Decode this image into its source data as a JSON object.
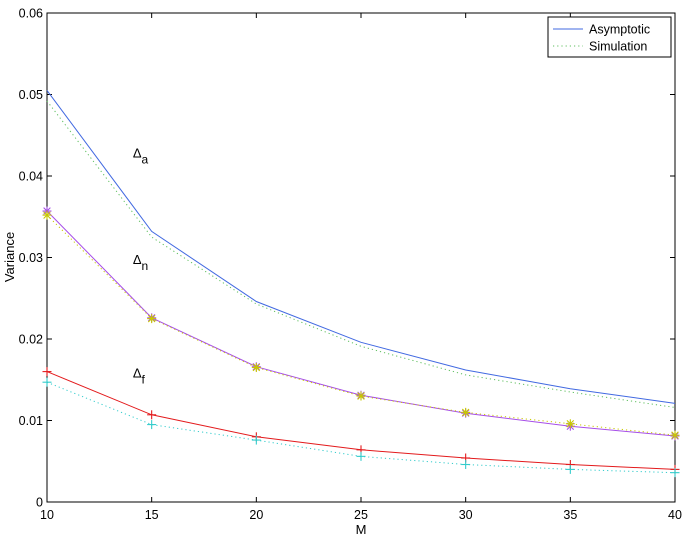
{
  "chart_data": {
    "type": "line",
    "xlabel": "M",
    "ylabel": "Variance",
    "xlim": [
      10,
      40
    ],
    "ylim": [
      0,
      0.06
    ],
    "x_ticks": [
      "10",
      "15",
      "20",
      "25",
      "30",
      "35",
      "40"
    ],
    "y_ticks": [
      "0",
      "0.01",
      "0.02",
      "0.03",
      "0.04",
      "0.05",
      "0.06"
    ],
    "grid": false,
    "legend_position": "top-right",
    "legend": [
      {
        "label": "Asymptotic",
        "style": "solid",
        "color": "#4169e1"
      },
      {
        "label": "Simulation",
        "style": "dotted",
        "color": "#5fbf5f"
      }
    ],
    "x": [
      10,
      15,
      20,
      25,
      30,
      35,
      40
    ],
    "series": [
      {
        "group": "a",
        "kind": "asymptotic",
        "color": "#4169e1",
        "marker": "none",
        "values": [
          0.0505,
          0.0332,
          0.0246,
          0.0196,
          0.0162,
          0.0139,
          0.0121
        ]
      },
      {
        "group": "a",
        "kind": "simulation",
        "color": "#5fbf5f",
        "marker": "none",
        "values": [
          0.0492,
          0.0325,
          0.0243,
          0.0191,
          0.0156,
          0.0135,
          0.0116
        ]
      },
      {
        "group": "n",
        "kind": "asymptotic",
        "color": "#a64ee8",
        "marker": "asterisk",
        "values": [
          0.0357,
          0.0226,
          0.0166,
          0.0131,
          0.0109,
          0.0093,
          0.0081
        ]
      },
      {
        "group": "n",
        "kind": "simulation",
        "color": "#c8c800",
        "marker": "asterisk",
        "values": [
          0.0352,
          0.0225,
          0.0165,
          0.013,
          0.011,
          0.0096,
          0.0082
        ]
      },
      {
        "group": "f",
        "kind": "asymptotic",
        "color": "#e31a1c",
        "marker": "plus",
        "values": [
          0.016,
          0.0107,
          0.008,
          0.0064,
          0.0054,
          0.0046,
          0.004
        ]
      },
      {
        "group": "f",
        "kind": "simulation",
        "color": "#33cccc",
        "marker": "plus",
        "values": [
          0.0147,
          0.0095,
          0.0076,
          0.0056,
          0.0046,
          0.004,
          0.0036
        ]
      }
    ],
    "annotations": [
      {
        "base": "Δ",
        "sub": "a",
        "x": 14.1,
        "y": 0.0423
      },
      {
        "base": "Δ",
        "sub": "n",
        "x": 14.1,
        "y": 0.0292
      },
      {
        "base": "Δ",
        "sub": "f",
        "x": 14.1,
        "y": 0.0153
      }
    ]
  }
}
